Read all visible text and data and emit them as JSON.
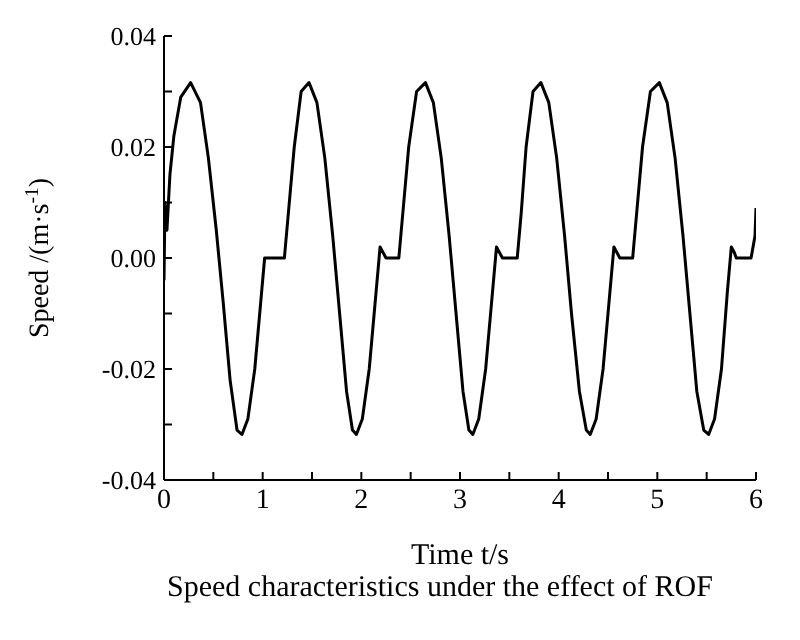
{
  "chart_data": {
    "type": "line",
    "title": "Speed characteristics under the effect of ROF",
    "xlabel": "Time t/s",
    "ylabel": "Speed /(m·s$^{-1}$)",
    "x": [
      0,
      0.01,
      0.03,
      0.06,
      0.1,
      0.17,
      0.27,
      0.37,
      0.45,
      0.53,
      0.6,
      0.67,
      0.74,
      0.79,
      0.85,
      0.92,
      0.98,
      1.02,
      1.22,
      1.26,
      1.32,
      1.39,
      1.47,
      1.55,
      1.63,
      1.71,
      1.78,
      1.85,
      1.91,
      1.95,
      2.01,
      2.08,
      2.15,
      2.19,
      2.22,
      2.25,
      2.38,
      2.42,
      2.48,
      2.56,
      2.65,
      2.73,
      2.81,
      2.89,
      2.96,
      3.03,
      3.09,
      3.13,
      3.19,
      3.26,
      3.33,
      3.37,
      3.4,
      3.43,
      3.58,
      3.62,
      3.67,
      3.74,
      3.82,
      3.9,
      3.98,
      4.06,
      4.13,
      4.21,
      4.28,
      4.32,
      4.38,
      4.45,
      4.52,
      4.56,
      4.59,
      4.62,
      4.75,
      4.79,
      4.85,
      4.93,
      5.02,
      5.1,
      5.18,
      5.26,
      5.33,
      5.4,
      5.47,
      5.52,
      5.58,
      5.65,
      5.71,
      5.75,
      5.78,
      5.8,
      5.95,
      5.97,
      5.99,
      6
    ],
    "series": [
      {
        "color": "#000000",
        "values": [
          -0.004,
          0.01,
          0.005,
          0.015,
          0.022,
          0.029,
          0.0316,
          0.028,
          0.018,
          0.005,
          -0.008,
          -0.022,
          -0.031,
          -0.0318,
          -0.029,
          -0.02,
          -0.008,
          0,
          0,
          0.008,
          0.02,
          0.03,
          0.0316,
          0.028,
          0.018,
          0.004,
          -0.01,
          -0.024,
          -0.031,
          -0.0318,
          -0.029,
          -0.02,
          -0.006,
          0.002,
          0.001,
          0,
          0,
          0.008,
          0.02,
          0.03,
          0.0316,
          0.028,
          0.018,
          0.004,
          -0.01,
          -0.024,
          -0.031,
          -0.0318,
          -0.029,
          -0.02,
          -0.006,
          0.002,
          0.001,
          0,
          0,
          0.008,
          0.02,
          0.03,
          0.0316,
          0.028,
          0.018,
          0.004,
          -0.01,
          -0.024,
          -0.031,
          -0.0318,
          -0.029,
          -0.02,
          -0.006,
          0.002,
          0.001,
          0,
          0,
          0.008,
          0.02,
          0.03,
          0.0316,
          0.028,
          0.018,
          0.004,
          -0.01,
          -0.024,
          -0.031,
          -0.0318,
          -0.029,
          -0.02,
          -0.006,
          0.002,
          0.001,
          0,
          0,
          0.002,
          0.004,
          0.009
        ]
      }
    ],
    "xlim": [
      0,
      6
    ],
    "xticks": [
      0,
      {
        "value": 0.5,
        "label": null
      },
      1,
      {
        "value": 1.5,
        "label": null
      },
      2,
      {
        "value": 2.5,
        "label": null
      },
      3,
      {
        "value": 3.5,
        "label": null
      },
      4,
      {
        "value": 4.5,
        "label": null
      },
      5,
      {
        "value": 5.5,
        "label": null
      },
      6
    ],
    "ylim": [
      -0.04,
      0.04
    ],
    "yticks": [
      {
        "value": -0.04,
        "label": "-0.04"
      },
      {
        "value": -0.03,
        "label": null
      },
      {
        "value": -0.02,
        "label": "-0.02"
      },
      {
        "value": -0.01,
        "label": null
      },
      {
        "value": 0,
        "label": "0.00"
      },
      {
        "value": 0.01,
        "label": null
      },
      {
        "value": 0.02,
        "label": "0.02"
      },
      {
        "value": 0.03,
        "label": null
      },
      {
        "value": 0.04,
        "label": "0.04"
      }
    ],
    "grid": false,
    "legend": false,
    "marker": "none",
    "line_style": "solid"
  }
}
